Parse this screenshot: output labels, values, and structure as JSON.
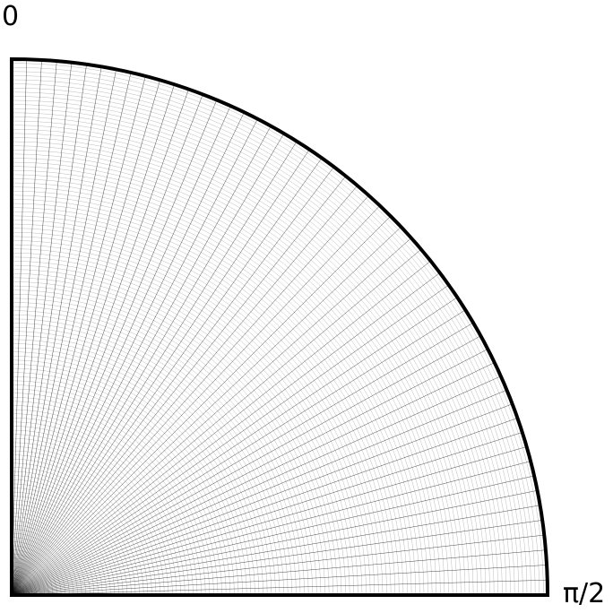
{
  "labels": {
    "start_angle": "0",
    "end_angle": "π/2"
  },
  "mesh": {
    "shape": "quarter-disc",
    "angular_lines": 56,
    "radial_rings": 130,
    "colors": {
      "boundary": "#000000",
      "grid_line": "#000000",
      "background": "#ffffff"
    }
  }
}
